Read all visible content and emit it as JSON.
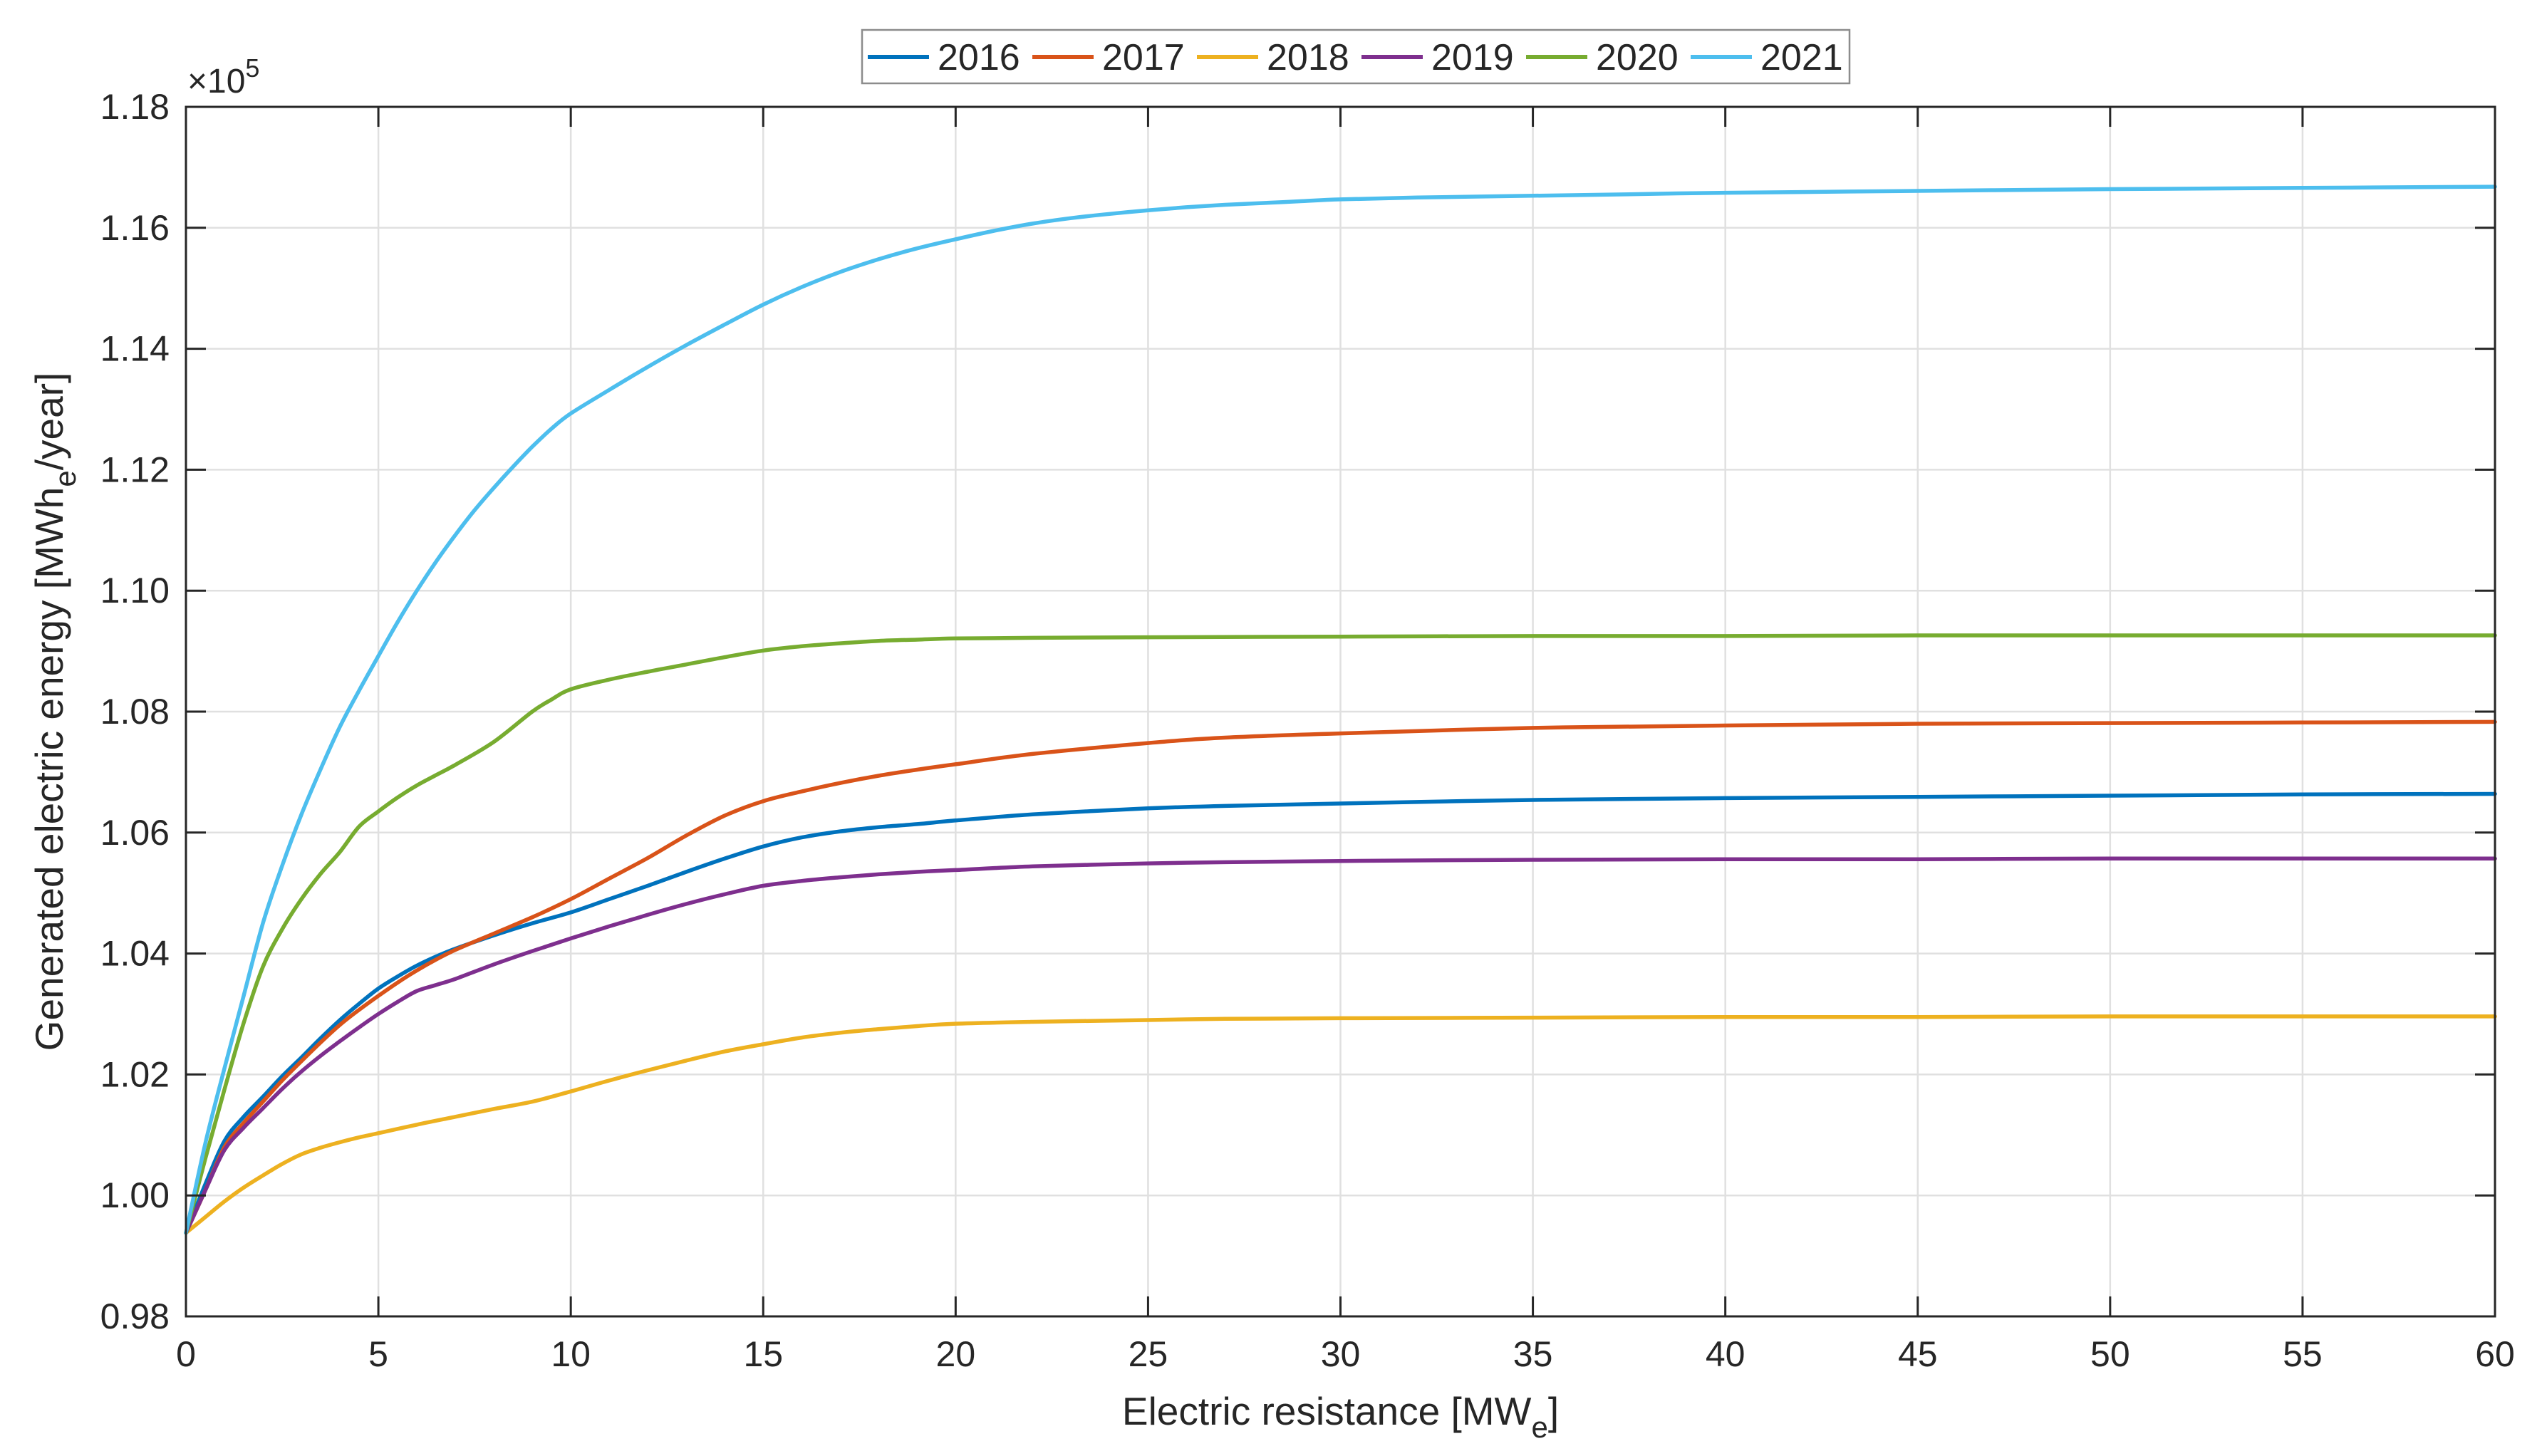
{
  "chart_data": {
    "type": "line",
    "title": "",
    "xlabel": {
      "pre": "Electric resistance [MW",
      "sub": "e",
      "post": "]"
    },
    "ylabel": {
      "pre": "Generated electric energy [MWh",
      "sub": "e",
      "post": "/year]"
    },
    "y_offset_label": {
      "base": "×10",
      "exp": "5"
    },
    "xlim": [
      0,
      60
    ],
    "ylim": [
      0.98,
      1.18
    ],
    "xticks": [
      0,
      5,
      10,
      15,
      20,
      25,
      30,
      35,
      40,
      45,
      50,
      55,
      60
    ],
    "xtick_labels": [
      "0",
      "5",
      "10",
      "15",
      "20",
      "25",
      "30",
      "35",
      "40",
      "45",
      "50",
      "55",
      "60"
    ],
    "yticks": [
      0.98,
      1.0,
      1.02,
      1.04,
      1.06,
      1.08,
      1.1,
      1.12,
      1.14,
      1.16,
      1.18
    ],
    "ytick_labels": [
      "0.98",
      "1.00",
      "1.02",
      "1.04",
      "1.06",
      "1.08",
      "1.10",
      "1.12",
      "1.14",
      "1.16",
      "1.18"
    ],
    "grid": true,
    "legend_position": "top-center",
    "colors": {
      "axis": "#262626",
      "grid": "#E0E0E0",
      "text": "#262626",
      "legend_border": "#8C8C8C",
      "background": "#FFFFFF"
    },
    "series": [
      {
        "name": "2016",
        "color": "#0072BD",
        "points": [
          [
            0,
            0.9938
          ],
          [
            0.5,
            1.0018
          ],
          [
            1,
            1.009
          ],
          [
            1.5,
            1.013
          ],
          [
            2,
            1.0163
          ],
          [
            2.5,
            1.0197
          ],
          [
            3,
            1.0228
          ],
          [
            3.5,
            1.026
          ],
          [
            4,
            1.029
          ],
          [
            4.5,
            1.0317
          ],
          [
            5,
            1.0342
          ],
          [
            5.5,
            1.0362
          ],
          [
            6,
            1.038
          ],
          [
            6.5,
            1.0395
          ],
          [
            7,
            1.0408
          ],
          [
            8,
            1.043
          ],
          [
            9,
            1.045
          ],
          [
            10,
            1.0468
          ],
          [
            11,
            1.049
          ],
          [
            12,
            1.0512
          ],
          [
            13,
            1.0535
          ],
          [
            14,
            1.0557
          ],
          [
            15,
            1.0577
          ],
          [
            16,
            1.0592
          ],
          [
            17,
            1.0602
          ],
          [
            18,
            1.0609
          ],
          [
            19,
            1.0614
          ],
          [
            20,
            1.062
          ],
          [
            22,
            1.063
          ],
          [
            25,
            1.064
          ],
          [
            27,
            1.0644
          ],
          [
            30,
            1.0648
          ],
          [
            35,
            1.0654
          ],
          [
            40,
            1.0657
          ],
          [
            45,
            1.0659
          ],
          [
            50,
            1.0661
          ],
          [
            55,
            1.0663
          ],
          [
            60,
            1.0664
          ]
        ]
      },
      {
        "name": "2017",
        "color": "#D95319",
        "points": [
          [
            0,
            0.9938
          ],
          [
            0.5,
            1.0008
          ],
          [
            1,
            1.008
          ],
          [
            1.5,
            1.012
          ],
          [
            2,
            1.0155
          ],
          [
            2.5,
            1.019
          ],
          [
            3,
            1.0222
          ],
          [
            3.5,
            1.0253
          ],
          [
            4,
            1.0282
          ],
          [
            4.5,
            1.0307
          ],
          [
            5,
            1.033
          ],
          [
            5.5,
            1.0352
          ],
          [
            6,
            1.0372
          ],
          [
            6.5,
            1.039
          ],
          [
            7,
            1.0406
          ],
          [
            8,
            1.0433
          ],
          [
            9,
            1.046
          ],
          [
            10,
            1.049
          ],
          [
            11,
            1.0524
          ],
          [
            12,
            1.0558
          ],
          [
            13,
            1.0595
          ],
          [
            14,
            1.0628
          ],
          [
            15,
            1.0652
          ],
          [
            16,
            1.0668
          ],
          [
            17,
            1.0682
          ],
          [
            18,
            1.0694
          ],
          [
            19,
            1.0704
          ],
          [
            20,
            1.0713
          ],
          [
            22,
            1.073
          ],
          [
            25,
            1.0748
          ],
          [
            27,
            1.0757
          ],
          [
            30,
            1.0764
          ],
          [
            35,
            1.0773
          ],
          [
            40,
            1.0777
          ],
          [
            45,
            1.078
          ],
          [
            50,
            1.0781
          ],
          [
            55,
            1.0782
          ],
          [
            60,
            1.0783
          ]
        ]
      },
      {
        "name": "2018",
        "color": "#EDB120",
        "points": [
          [
            0,
            0.9938
          ],
          [
            0.5,
            0.9964
          ],
          [
            1,
            0.999
          ],
          [
            1.5,
            1.0013
          ],
          [
            2,
            1.0033
          ],
          [
            2.5,
            1.0052
          ],
          [
            3,
            1.0068
          ],
          [
            3.5,
            1.0079
          ],
          [
            4,
            1.0088
          ],
          [
            4.5,
            1.0096
          ],
          [
            5,
            1.0103
          ],
          [
            6,
            1.0117
          ],
          [
            7,
            1.013
          ],
          [
            8,
            1.0143
          ],
          [
            9,
            1.0155
          ],
          [
            10,
            1.0172
          ],
          [
            11,
            1.019
          ],
          [
            12,
            1.0207
          ],
          [
            13,
            1.0223
          ],
          [
            14,
            1.0238
          ],
          [
            15,
            1.025
          ],
          [
            16,
            1.0261
          ],
          [
            17,
            1.0269
          ],
          [
            18,
            1.0275
          ],
          [
            19,
            1.028
          ],
          [
            20,
            1.0284
          ],
          [
            22,
            1.0287
          ],
          [
            25,
            1.029
          ],
          [
            27,
            1.0292
          ],
          [
            30,
            1.0293
          ],
          [
            35,
            1.0294
          ],
          [
            40,
            1.0295
          ],
          [
            45,
            1.0295
          ],
          [
            50,
            1.0296
          ],
          [
            55,
            1.0296
          ],
          [
            60,
            1.0296
          ]
        ]
      },
      {
        "name": "2019",
        "color": "#7E2F8E",
        "points": [
          [
            0,
            0.9938
          ],
          [
            0.5,
            1.0008
          ],
          [
            1,
            1.0075
          ],
          [
            1.5,
            1.0112
          ],
          [
            2,
            1.0144
          ],
          [
            2.5,
            1.0176
          ],
          [
            3,
            1.0205
          ],
          [
            3.5,
            1.0231
          ],
          [
            4,
            1.0255
          ],
          [
            4.5,
            1.0278
          ],
          [
            5,
            1.03
          ],
          [
            5.5,
            1.032
          ],
          [
            6,
            1.0338
          ],
          [
            6.5,
            1.0348
          ],
          [
            7,
            1.0358
          ],
          [
            8,
            1.0382
          ],
          [
            9,
            1.0404
          ],
          [
            10,
            1.0425
          ],
          [
            11,
            1.0445
          ],
          [
            12,
            1.0464
          ],
          [
            13,
            1.0482
          ],
          [
            14,
            1.0498
          ],
          [
            15,
            1.0512
          ],
          [
            16,
            1.052
          ],
          [
            17,
            1.0526
          ],
          [
            18,
            1.0531
          ],
          [
            19,
            1.0535
          ],
          [
            20,
            1.0538
          ],
          [
            22,
            1.0544
          ],
          [
            25,
            1.0549
          ],
          [
            27,
            1.0551
          ],
          [
            30,
            1.0553
          ],
          [
            35,
            1.0555
          ],
          [
            40,
            1.0556
          ],
          [
            45,
            1.0556
          ],
          [
            50,
            1.0557
          ],
          [
            55,
            1.0557
          ],
          [
            60,
            1.0557
          ]
        ]
      },
      {
        "name": "2020",
        "color": "#77AC30",
        "points": [
          [
            0,
            0.9938
          ],
          [
            0.5,
            1.006
          ],
          [
            1,
            1.0175
          ],
          [
            1.5,
            1.0285
          ],
          [
            2,
            1.0378
          ],
          [
            2.5,
            1.044
          ],
          [
            3,
            1.049
          ],
          [
            3.5,
            1.0532
          ],
          [
            4,
            1.0568
          ],
          [
            4.5,
            1.061
          ],
          [
            5,
            1.0635
          ],
          [
            5.5,
            1.0658
          ],
          [
            6,
            1.0678
          ],
          [
            6.5,
            1.0695
          ],
          [
            7,
            1.0712
          ],
          [
            8,
            1.075
          ],
          [
            9,
            1.08
          ],
          [
            9.5,
            1.082
          ],
          [
            10,
            1.0837
          ],
          [
            11,
            1.0853
          ],
          [
            12,
            1.0866
          ],
          [
            13,
            1.0878
          ],
          [
            14,
            1.089
          ],
          [
            15,
            1.0901
          ],
          [
            16,
            1.0908
          ],
          [
            17,
            1.0913
          ],
          [
            18,
            1.0917
          ],
          [
            19,
            1.0919
          ],
          [
            20,
            1.0921
          ],
          [
            22,
            1.0922
          ],
          [
            25,
            1.0923
          ],
          [
            30,
            1.0924
          ],
          [
            35,
            1.0925
          ],
          [
            40,
            1.0925
          ],
          [
            45,
            1.0926
          ],
          [
            50,
            1.0926
          ],
          [
            55,
            1.0926
          ],
          [
            60,
            1.0926
          ]
        ]
      },
      {
        "name": "2021",
        "color": "#4DBEEE",
        "points": [
          [
            0,
            0.9938
          ],
          [
            0.5,
            1.0085
          ],
          [
            1,
            1.021
          ],
          [
            1.5,
            1.033
          ],
          [
            2,
            1.045
          ],
          [
            2.5,
            1.0545
          ],
          [
            3,
            1.063
          ],
          [
            3.5,
            1.0705
          ],
          [
            4,
            1.0775
          ],
          [
            4.5,
            1.0835
          ],
          [
            5,
            1.0892
          ],
          [
            5.5,
            1.0948
          ],
          [
            6,
            1.1
          ],
          [
            6.5,
            1.1048
          ],
          [
            7,
            1.1092
          ],
          [
            7.5,
            1.1133
          ],
          [
            8,
            1.117
          ],
          [
            8.5,
            1.1205
          ],
          [
            9,
            1.1238
          ],
          [
            9.5,
            1.1268
          ],
          [
            10,
            1.1293
          ],
          [
            11,
            1.1332
          ],
          [
            12,
            1.137
          ],
          [
            13,
            1.1406
          ],
          [
            14,
            1.144
          ],
          [
            15,
            1.1473
          ],
          [
            16,
            1.1502
          ],
          [
            17,
            1.1527
          ],
          [
            18,
            1.1548
          ],
          [
            19,
            1.1566
          ],
          [
            20,
            1.1581
          ],
          [
            21,
            1.1595
          ],
          [
            22,
            1.1607
          ],
          [
            23,
            1.1616
          ],
          [
            24,
            1.1623
          ],
          [
            25,
            1.1629
          ],
          [
            26,
            1.1634
          ],
          [
            27,
            1.1638
          ],
          [
            28,
            1.1641
          ],
          [
            29,
            1.1644
          ],
          [
            30,
            1.1647
          ],
          [
            32,
            1.165
          ],
          [
            35,
            1.1653
          ],
          [
            38,
            1.1656
          ],
          [
            40,
            1.1658
          ],
          [
            45,
            1.1661
          ],
          [
            50,
            1.1664
          ],
          [
            55,
            1.1666
          ],
          [
            60,
            1.1668
          ]
        ]
      }
    ],
    "legend_entries": [
      "2016",
      "2017",
      "2018",
      "2019",
      "2020",
      "2021"
    ]
  }
}
